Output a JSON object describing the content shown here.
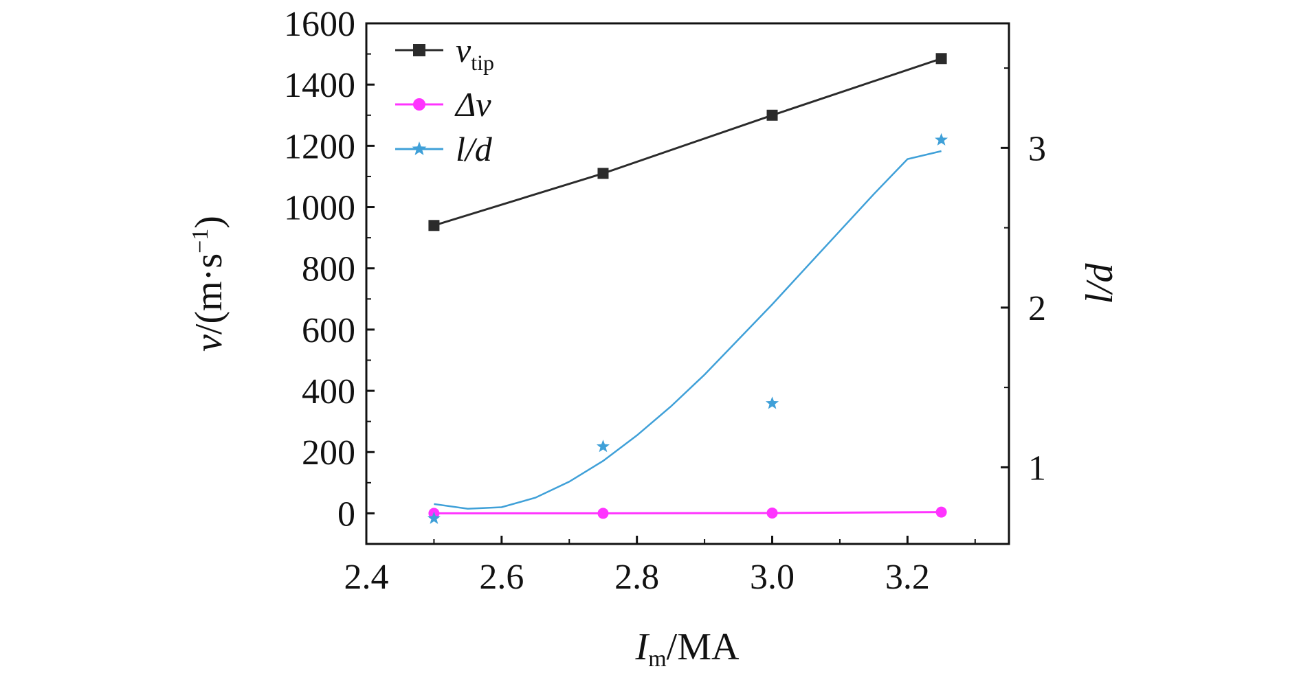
{
  "chart_data": {
    "type": "line",
    "x_axis": {
      "label_main": "I",
      "label_sub": "m",
      "label_tail": "/MA",
      "range": [
        2.4,
        3.35
      ],
      "ticks": [
        2.4,
        2.6,
        2.8,
        3.0,
        3.2
      ],
      "tick_labels": [
        "2.4",
        "2.6",
        "2.8",
        "3.0",
        "3.2"
      ]
    },
    "y_axis_left": {
      "label_main": "v",
      "label_tail": "/(m·s",
      "label_sup": "−1",
      "label_close": ")",
      "range": [
        -100,
        1600
      ],
      "ticks": [
        0,
        200,
        400,
        600,
        800,
        1000,
        1200,
        1400,
        1600
      ],
      "tick_labels": [
        "0",
        "200",
        "400",
        "600",
        "800",
        "1000",
        "1200",
        "1400",
        "1600"
      ]
    },
    "y_axis_right": {
      "label": "l/d",
      "range": [
        0.52,
        3.78
      ],
      "ticks": [
        1,
        2,
        3
      ],
      "tick_labels": [
        "1",
        "2",
        "3"
      ]
    },
    "series": [
      {
        "name_main": "v",
        "name_sub": "tip",
        "axis": "left",
        "marker": "square",
        "color": "#2b2b2b",
        "x": [
          2.5,
          2.75,
          3.0,
          3.25
        ],
        "y": [
          940,
          1110,
          1300,
          1485
        ]
      },
      {
        "name_main": "Δv",
        "axis": "left",
        "marker": "circle",
        "color": "#ff33ff",
        "x": [
          2.5,
          2.75,
          3.0,
          3.25
        ],
        "y": [
          0,
          0,
          1,
          4
        ]
      },
      {
        "name_main": "l/d",
        "axis": "right",
        "marker": "star",
        "color": "#3fa0d8",
        "x": [
          2.5,
          2.75,
          3.0,
          3.25
        ],
        "y": [
          0.68,
          1.13,
          1.4,
          3.05
        ],
        "fit_curve": {
          "color": "#3fa0d8",
          "x": [
            2.5,
            2.55,
            2.6,
            2.65,
            2.7,
            2.75,
            2.8,
            2.85,
            2.9,
            2.95,
            3.0,
            3.05,
            3.1,
            3.15,
            3.2,
            3.25
          ],
          "y": [
            0.77,
            0.74,
            0.75,
            0.81,
            0.91,
            1.04,
            1.2,
            1.38,
            1.58,
            1.8,
            2.02,
            2.25,
            2.48,
            2.71,
            2.93,
            2.98
          ]
        }
      }
    ],
    "legend_position": "top-left",
    "grid": false
  }
}
